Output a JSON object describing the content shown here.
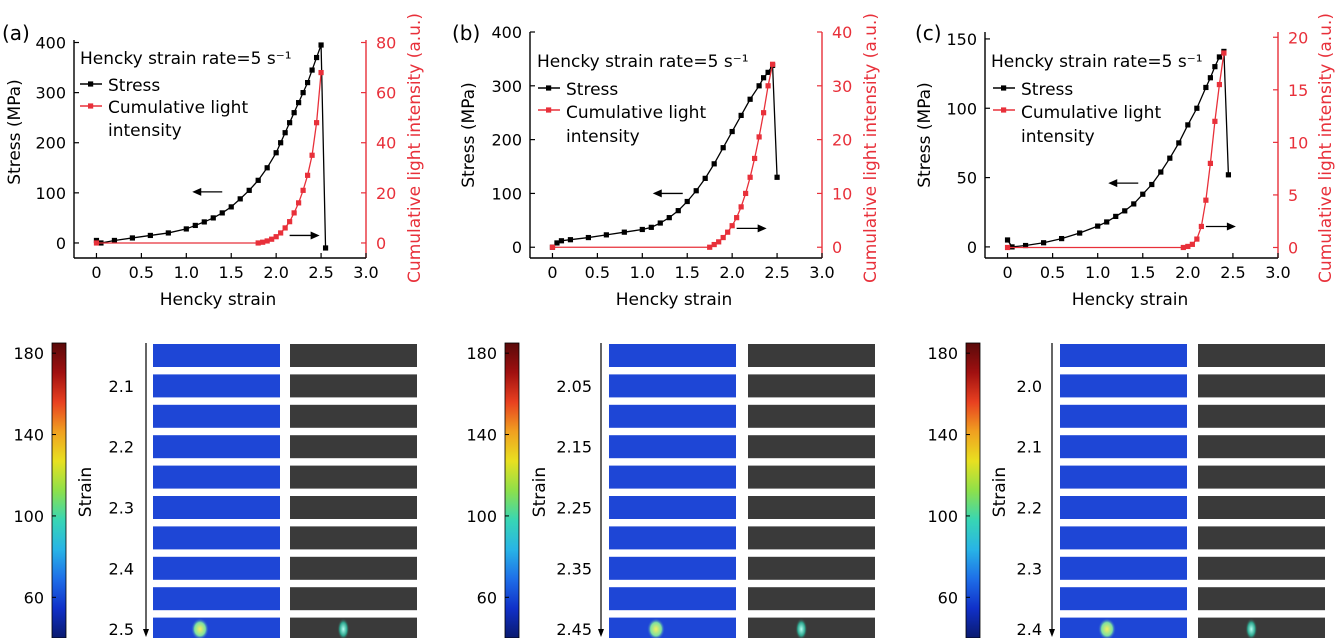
{
  "colors": {
    "stress": "#000000",
    "light": "#e8303a",
    "strain_img": "#1e46d6",
    "light_img": "#3a3a3a",
    "hotspot_strain": "#c8e84a",
    "hotspot_light": "#7ae8c8"
  },
  "colorbar_stops": [
    "#0a1a6e",
    "#1030c8",
    "#1e6ee8",
    "#28b4e6",
    "#38d6b4",
    "#8ee04a",
    "#e8e020",
    "#f0a020",
    "#e84020",
    "#a01010",
    "#5a0a0a"
  ],
  "colorbar_range": [
    40,
    185
  ],
  "chart_data": [
    {
      "type": "line",
      "panel_label": "(a)",
      "annotation": "Hencky strain rate=5 s⁻¹",
      "xlabel": "Hencky strain",
      "ylabel_left": "Stress (MPa)",
      "ylabel_right": "Cumulative light intensity (a.u.)",
      "xlim": [
        -0.25,
        3.0
      ],
      "xticks": [
        0,
        0.5,
        1.0,
        1.5,
        2.0,
        2.5,
        3.0
      ],
      "xtick_labels": [
        "0",
        "0.5",
        "1.0",
        "1.5",
        "2.0",
        "2.5",
        "3.0"
      ],
      "ylim_left": [
        -30,
        405
      ],
      "yticks_left": [
        0,
        100,
        200,
        300,
        400
      ],
      "ylim_right": [
        -6,
        81
      ],
      "yticks_right": [
        0,
        20,
        40,
        60,
        80
      ],
      "legend": [
        "Stress",
        "Cumulative light",
        "intensity"
      ],
      "series": [
        {
          "name": "Stress",
          "axis": "left",
          "x": [
            0.0,
            0.05,
            0.2,
            0.4,
            0.6,
            0.8,
            1.0,
            1.1,
            1.2,
            1.3,
            1.4,
            1.5,
            1.6,
            1.7,
            1.8,
            1.9,
            2.0,
            2.05,
            2.1,
            2.15,
            2.2,
            2.25,
            2.3,
            2.35,
            2.4,
            2.45,
            2.5,
            2.55
          ],
          "y": [
            5,
            0,
            5,
            10,
            15,
            20,
            28,
            35,
            42,
            50,
            60,
            72,
            88,
            105,
            125,
            150,
            180,
            200,
            220,
            240,
            260,
            280,
            300,
            320,
            345,
            370,
            395,
            -10
          ]
        },
        {
          "name": "Cumulative light intensity",
          "axis": "right",
          "x": [
            0.0,
            1.8,
            1.85,
            1.9,
            1.95,
            2.0,
            2.05,
            2.1,
            2.15,
            2.2,
            2.25,
            2.3,
            2.35,
            2.4,
            2.45,
            2.5
          ],
          "y": [
            0,
            0,
            0.3,
            0.8,
            1.5,
            2.5,
            4,
            6,
            8.5,
            12,
            16,
            21,
            27,
            35,
            48,
            68
          ]
        }
      ],
      "arrows": [
        {
          "at": [
            1.4,
            102
          ],
          "dir": "left"
        },
        {
          "at": [
            2.15,
            3
          ],
          "dir": "right",
          "axis": "right"
        }
      ]
    },
    {
      "type": "line",
      "panel_label": "(b)",
      "annotation": "Hencky strain rate=5 s⁻¹",
      "xlabel": "Hencky strain",
      "ylabel_left": "Stress (MPa)",
      "ylabel_right": "Cumulative light intensity (a.u.)",
      "xlim": [
        -0.25,
        3.0
      ],
      "xticks": [
        0,
        0.5,
        1.0,
        1.5,
        2.0,
        2.5,
        3.0
      ],
      "xtick_labels": [
        "0",
        "0.5",
        "1.0",
        "1.5",
        "2.0",
        "2.5",
        "3.0"
      ],
      "ylim_left": [
        -20,
        400
      ],
      "yticks_left": [
        0,
        100,
        200,
        300,
        400
      ],
      "ylim_right": [
        -2,
        40
      ],
      "yticks_right": [
        0,
        10,
        20,
        30,
        40
      ],
      "legend": [
        "Stress",
        "Cumulative light",
        "intensity"
      ],
      "series": [
        {
          "name": "Stress",
          "axis": "left",
          "x": [
            0.0,
            0.05,
            0.1,
            0.2,
            0.4,
            0.6,
            0.8,
            1.0,
            1.1,
            1.2,
            1.3,
            1.4,
            1.5,
            1.6,
            1.7,
            1.8,
            1.9,
            2.0,
            2.1,
            2.2,
            2.3,
            2.35,
            2.4,
            2.45,
            2.5
          ],
          "y": [
            0,
            8,
            12,
            14,
            18,
            23,
            28,
            33,
            37,
            45,
            55,
            68,
            85,
            105,
            128,
            155,
            185,
            215,
            245,
            275,
            300,
            315,
            325,
            338,
            130
          ]
        },
        {
          "name": "Cumulative light intensity",
          "axis": "right",
          "x": [
            0.0,
            1.75,
            1.8,
            1.85,
            1.9,
            1.95,
            2.0,
            2.05,
            2.1,
            2.15,
            2.2,
            2.25,
            2.3,
            2.35,
            2.4,
            2.45
          ],
          "y": [
            0,
            0,
            0.5,
            1,
            1.8,
            2.8,
            4,
            5.5,
            7.5,
            10,
            13,
            16.5,
            20.5,
            25,
            30,
            34
          ]
        }
      ],
      "arrows": [
        {
          "at": [
            1.45,
            100
          ],
          "dir": "left"
        },
        {
          "at": [
            2.05,
            3.5
          ],
          "dir": "right",
          "axis": "right"
        }
      ]
    },
    {
      "type": "line",
      "panel_label": "(c)",
      "annotation": "Hencky strain rate=5 s⁻¹",
      "xlabel": "Hencky strain",
      "ylabel_left": "Stress (MPa)",
      "ylabel_right": "Cumulative light intensity (a.u.)",
      "xlim": [
        -0.25,
        3.0
      ],
      "xticks": [
        0,
        0.5,
        1.0,
        1.5,
        2.0,
        2.5,
        3.0
      ],
      "xtick_labels": [
        "0",
        "0.5",
        "1.0",
        "1.5",
        "2.0",
        "2.5",
        "3.0"
      ],
      "ylim_left": [
        -8,
        155
      ],
      "yticks_left": [
        0,
        50,
        100,
        150
      ],
      "ylim_right": [
        -1,
        20.5
      ],
      "yticks_right": [
        0,
        5,
        10,
        15,
        20
      ],
      "legend": [
        "Stress",
        "Cumulative light",
        "intensity"
      ],
      "series": [
        {
          "name": "Stress",
          "axis": "left",
          "x": [
            0.0,
            0.05,
            0.2,
            0.4,
            0.6,
            0.8,
            1.0,
            1.1,
            1.2,
            1.3,
            1.4,
            1.5,
            1.6,
            1.7,
            1.8,
            1.9,
            2.0,
            2.1,
            2.2,
            2.25,
            2.3,
            2.35,
            2.4,
            2.45
          ],
          "y": [
            5,
            0,
            1,
            3,
            6,
            10,
            15,
            18,
            22,
            26,
            31,
            38,
            45,
            54,
            64,
            75,
            88,
            100,
            115,
            122,
            130,
            137,
            141,
            52
          ]
        },
        {
          "name": "Cumulative light intensity",
          "axis": "right",
          "x": [
            0.0,
            1.95,
            2.0,
            2.05,
            2.1,
            2.15,
            2.2,
            2.25,
            2.3,
            2.35,
            2.4
          ],
          "y": [
            0,
            0,
            0.1,
            0.3,
            0.8,
            2,
            4.5,
            8,
            12,
            15.5,
            18.5
          ]
        }
      ],
      "arrows": [
        {
          "at": [
            1.45,
            46
          ],
          "dir": "left"
        },
        {
          "at": [
            2.2,
            2
          ],
          "dir": "right",
          "axis": "right"
        }
      ]
    }
  ],
  "image_panels": [
    {
      "colorbar_ticks": [
        "180",
        "140",
        "100",
        "60"
      ],
      "colorbar_values": [
        180,
        140,
        100,
        60
      ],
      "axis_label": "Strain",
      "strain_labels": [
        "2.1",
        "2.2",
        "2.3",
        "2.4",
        "2.5"
      ],
      "label_rows": [
        1,
        3,
        5,
        7,
        9
      ],
      "hotspot_row": 9
    },
    {
      "colorbar_ticks": [
        "180",
        "140",
        "100",
        "60"
      ],
      "colorbar_values": [
        180,
        140,
        100,
        60
      ],
      "axis_label": "Strain",
      "strain_labels": [
        "2.05",
        "2.15",
        "2.25",
        "2.35",
        "2.45"
      ],
      "label_rows": [
        1,
        3,
        5,
        7,
        9
      ],
      "hotspot_row": 9
    },
    {
      "colorbar_ticks": [
        "180",
        "140",
        "100",
        "60"
      ],
      "colorbar_values": [
        180,
        140,
        100,
        60
      ],
      "axis_label": "Strain",
      "strain_labels": [
        "2.0",
        "2.1",
        "2.2",
        "2.3",
        "2.4"
      ],
      "label_rows": [
        1,
        3,
        5,
        7,
        9
      ],
      "hotspot_row": 9
    }
  ]
}
